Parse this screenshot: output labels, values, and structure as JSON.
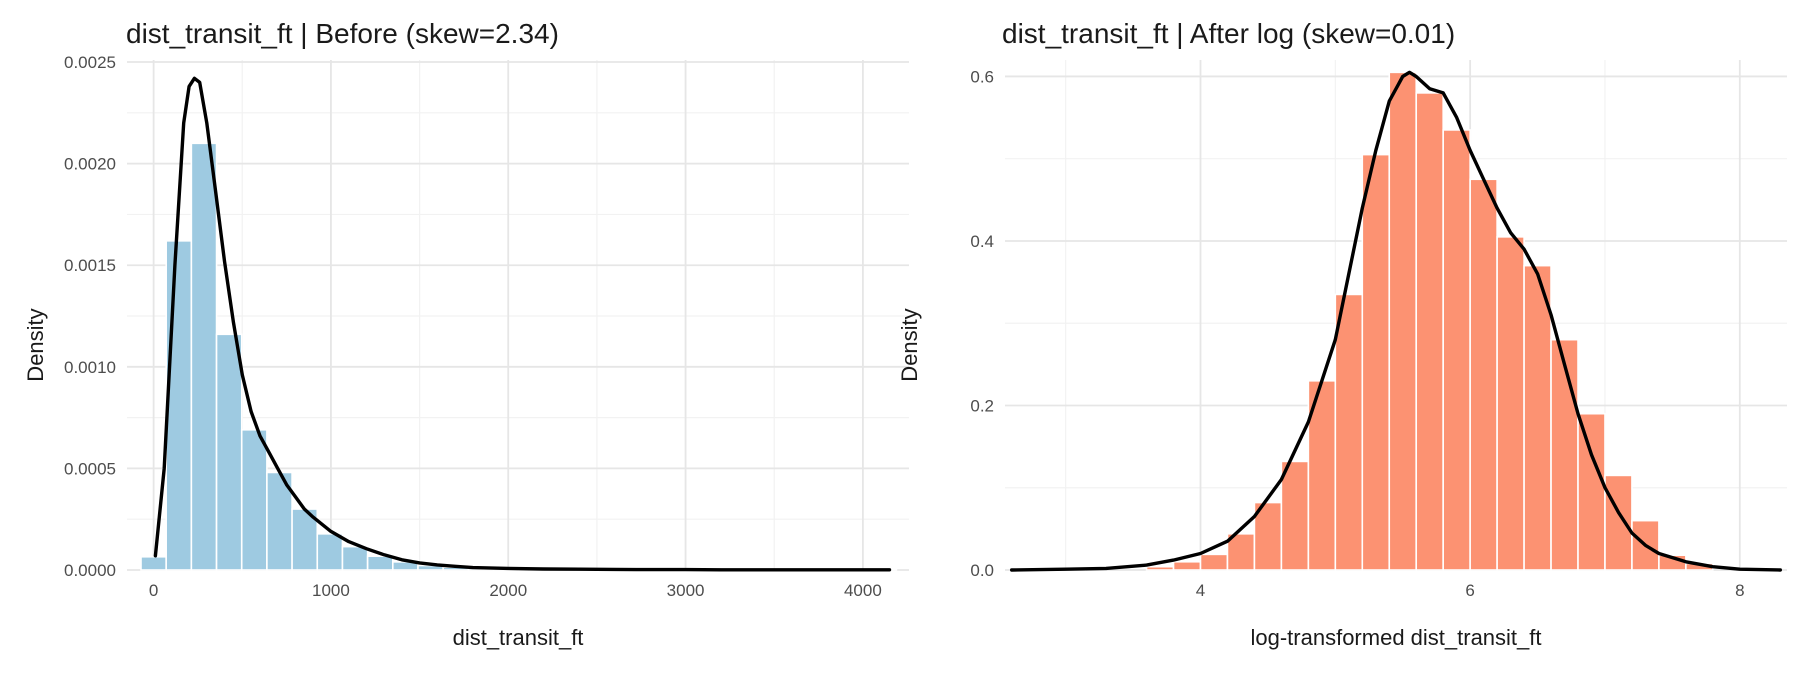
{
  "chart_data": [
    {
      "type": "bar",
      "title": "dist_transit_ft | Before (skew=2.34)",
      "xlabel": "dist_transit_ft",
      "ylabel": "Density",
      "xlim": [
        -150,
        4260
      ],
      "ylim": [
        0,
        0.00251
      ],
      "x_ticks": [
        0,
        1000,
        2000,
        3000,
        4000
      ],
      "x_tick_labels": [
        "0",
        "1000",
        "2000",
        "3000",
        "4000"
      ],
      "y_ticks": [
        0,
        0.0005,
        0.001,
        0.0015,
        0.002,
        0.0025
      ],
      "y_tick_labels": [
        "0.0000",
        "0.0005",
        "0.0010",
        "0.0015",
        "0.0020",
        "0.0025"
      ],
      "grid": true,
      "bar_color": "#9ecae1",
      "bin_width": 142,
      "bin_centers": [
        0,
        142,
        284,
        426,
        568,
        710,
        852,
        994,
        1136,
        1278,
        1420,
        1562,
        1704,
        1846,
        1988,
        2130,
        2272,
        2414,
        2556,
        2698,
        2840,
        2982,
        3124,
        3266,
        3408,
        3550,
        3692,
        3834,
        3976,
        4118
      ],
      "values": [
        6.5e-05,
        0.00162,
        0.0021,
        0.00116,
        0.00069,
        0.00048,
        0.0003,
        0.000178,
        0.000115,
        6.8e-05,
        4e-05,
        2.2e-05,
        1.4e-05,
        9e-06,
        6e-06,
        5e-06,
        4e-06,
        3e-06,
        3e-06,
        2e-06,
        2e-06,
        2e-06,
        1e-06,
        1e-06,
        1e-06,
        1e-06,
        1e-06,
        1e-06,
        1e-06,
        1e-06
      ],
      "density_curve": {
        "color": "#000000",
        "x": [
          10,
          60,
          120,
          170,
          200,
          230,
          260,
          300,
          350,
          400,
          450,
          500,
          550,
          600,
          650,
          700,
          750,
          800,
          850,
          900,
          1000,
          1100,
          1200,
          1300,
          1400,
          1500,
          1600,
          1700,
          1800,
          2000,
          2200,
          2400,
          2600,
          2800,
          3000,
          3200,
          3400,
          3600,
          3800,
          4000,
          4150
        ],
        "y": [
          7e-05,
          0.0005,
          0.0015,
          0.0022,
          0.00238,
          0.00242,
          0.0024,
          0.0022,
          0.00186,
          0.00152,
          0.00122,
          0.00096,
          0.00078,
          0.00066,
          0.00058,
          0.0005,
          0.00042,
          0.00036,
          0.0003,
          0.00026,
          0.00019,
          0.00014,
          0.000105,
          7.5e-05,
          5e-05,
          3.5e-05,
          2.5e-05,
          1.8e-05,
          1.2e-05,
          8e-06,
          5e-06,
          4e-06,
          3e-06,
          2e-06,
          2e-06,
          1e-06,
          1e-06,
          1e-06,
          1e-06,
          1e-06,
          1e-06
        ]
      }
    },
    {
      "type": "bar",
      "title": "dist_transit_ft | After log (skew=0.01)",
      "xlabel": "log-transformed dist_transit_ft",
      "ylabel": "Density",
      "xlim": [
        2.55,
        8.35
      ],
      "ylim": [
        0,
        0.62
      ],
      "x_ticks": [
        4,
        6,
        8
      ],
      "x_tick_labels": [
        "4",
        "6",
        "8"
      ],
      "y_ticks": [
        0,
        0.2,
        0.4,
        0.6
      ],
      "y_tick_labels": [
        "0.0",
        "0.2",
        "0.4",
        "0.6"
      ],
      "grid": true,
      "bar_color": "#fc9272",
      "bin_width": 0.2,
      "bin_centers": [
        3.7,
        3.9,
        4.1,
        4.3,
        4.5,
        4.7,
        4.9,
        5.1,
        5.3,
        5.5,
        5.7,
        5.9,
        6.1,
        6.3,
        6.5,
        6.7,
        6.9,
        7.1,
        7.3,
        7.5,
        7.7
      ],
      "values": [
        0.004,
        0.01,
        0.019,
        0.044,
        0.082,
        0.132,
        0.23,
        0.335,
        0.505,
        0.605,
        0.58,
        0.535,
        0.475,
        0.405,
        0.37,
        0.28,
        0.19,
        0.115,
        0.06,
        0.018,
        0.008
      ],
      "density_curve": {
        "color": "#000000",
        "x": [
          2.6,
          3.0,
          3.3,
          3.6,
          3.8,
          4.0,
          4.2,
          4.4,
          4.6,
          4.8,
          5.0,
          5.1,
          5.2,
          5.3,
          5.4,
          5.5,
          5.55,
          5.6,
          5.7,
          5.8,
          5.9,
          6.0,
          6.1,
          6.2,
          6.3,
          6.4,
          6.5,
          6.6,
          6.7,
          6.8,
          6.9,
          7.0,
          7.1,
          7.2,
          7.3,
          7.4,
          7.6,
          7.8,
          8.0,
          8.3
        ],
        "y": [
          0.0,
          0.001,
          0.002,
          0.006,
          0.012,
          0.02,
          0.035,
          0.065,
          0.11,
          0.18,
          0.28,
          0.36,
          0.44,
          0.51,
          0.57,
          0.6,
          0.605,
          0.6,
          0.585,
          0.58,
          0.55,
          0.51,
          0.475,
          0.44,
          0.41,
          0.39,
          0.36,
          0.31,
          0.25,
          0.19,
          0.14,
          0.1,
          0.07,
          0.045,
          0.03,
          0.02,
          0.01,
          0.004,
          0.001,
          0.0
        ]
      }
    }
  ]
}
